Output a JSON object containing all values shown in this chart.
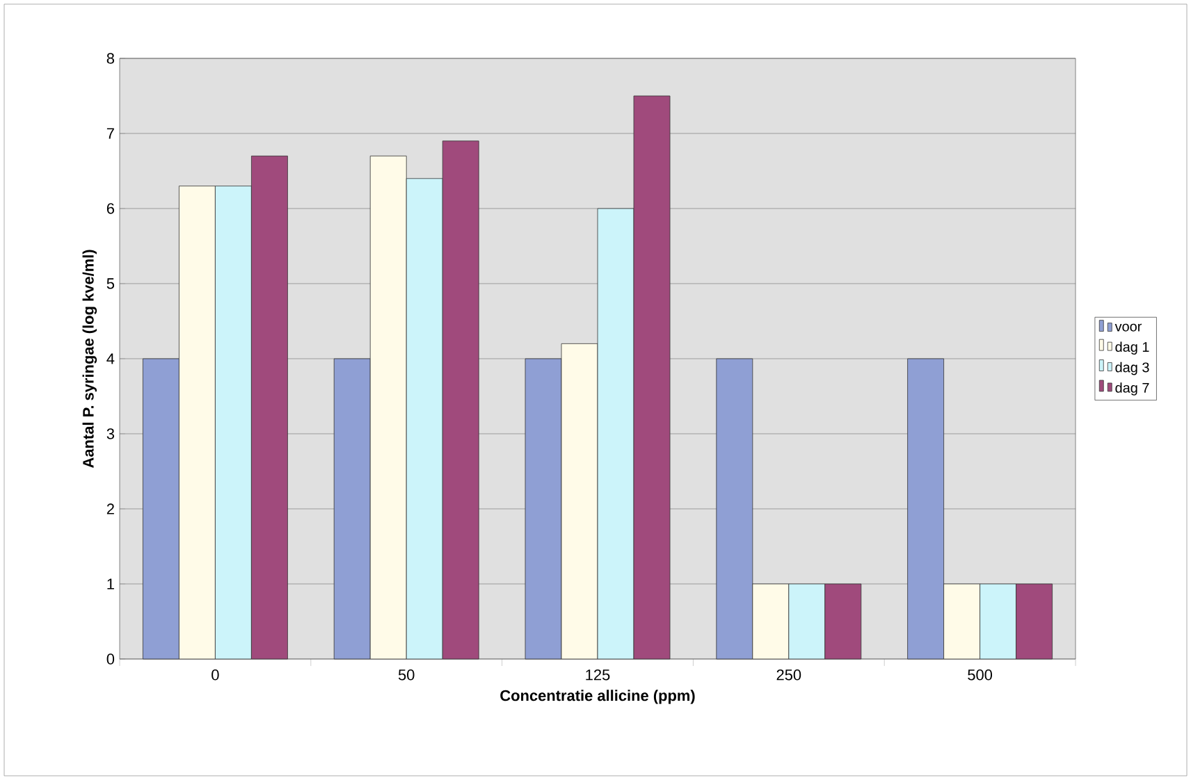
{
  "chart_data": {
    "type": "bar",
    "xlabel": "Concentratie allicine (ppm)",
    "ylabel": "Aantal P. syringae (log kve/ml)",
    "categories": [
      "0",
      "50",
      "125",
      "250",
      "500"
    ],
    "series": [
      {
        "name": "voor",
        "color": "#8f9fd4",
        "values": [
          4,
          4,
          4,
          4,
          4
        ]
      },
      {
        "name": "dag 1",
        "color": "#fffbe8",
        "values": [
          6.3,
          6.7,
          4.2,
          1,
          1
        ]
      },
      {
        "name": "dag 3",
        "color": "#ccf4fa",
        "values": [
          6.3,
          6.4,
          6.0,
          1,
          1
        ]
      },
      {
        "name": "dag 7",
        "color": "#a04a7c",
        "values": [
          6.7,
          6.9,
          7.5,
          1,
          1
        ]
      }
    ],
    "ylim": [
      0,
      8
    ],
    "yticks": [
      0,
      1,
      2,
      3,
      4,
      5,
      6,
      7,
      8
    ],
    "grid": "y",
    "legend": "right"
  }
}
